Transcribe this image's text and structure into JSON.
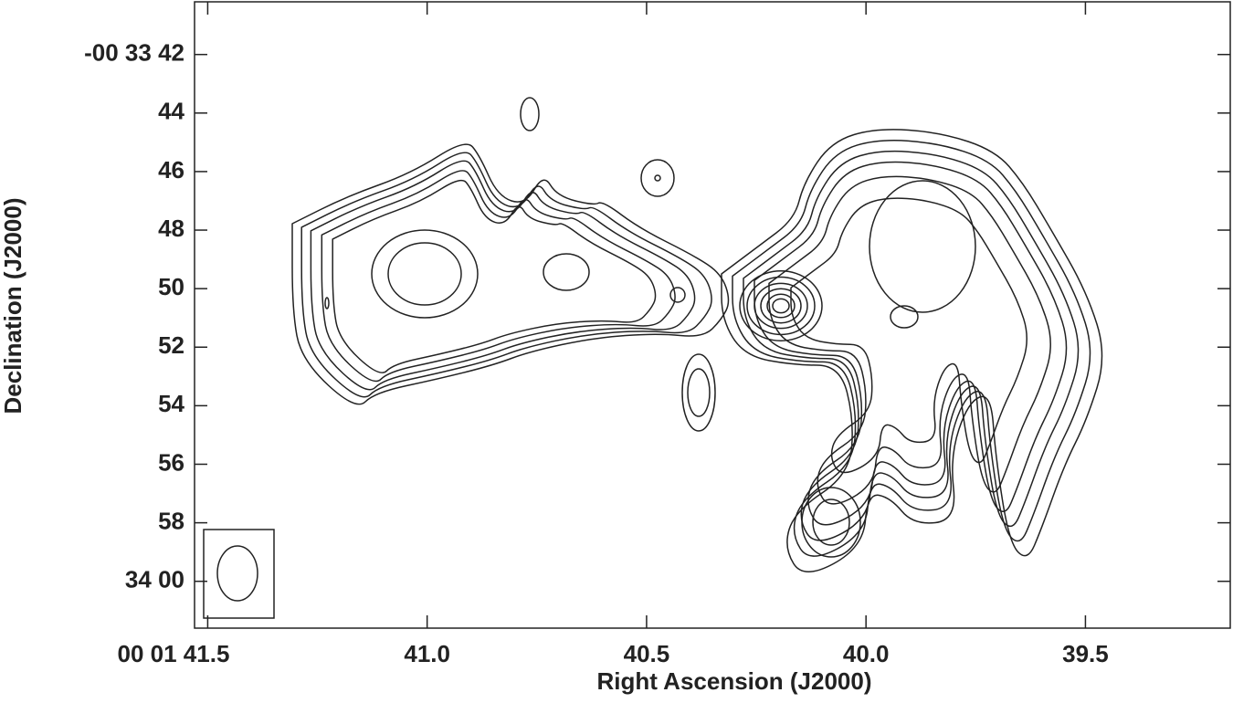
{
  "chart_data": {
    "type": "contour",
    "x_label": "Right Ascension (J2000)",
    "y_label": "Declination (J2000)",
    "xlim": [
      41.53,
      39.17
    ],
    "ylim": [
      40.2,
      61.6
    ],
    "xticks": [
      {
        "value": 41.5,
        "label": "00 01 41.5"
      },
      {
        "value": 41,
        "label": "41.0"
      },
      40.5,
      {
        "value": 40,
        "label": "40.0"
      },
      39.5
    ],
    "yticks": [
      {
        "value": 42,
        "label": "-00 33 42"
      },
      44,
      46,
      48,
      50,
      52,
      54,
      56,
      58,
      {
        "value": 60,
        "label": "34 00"
      }
    ]
  }
}
